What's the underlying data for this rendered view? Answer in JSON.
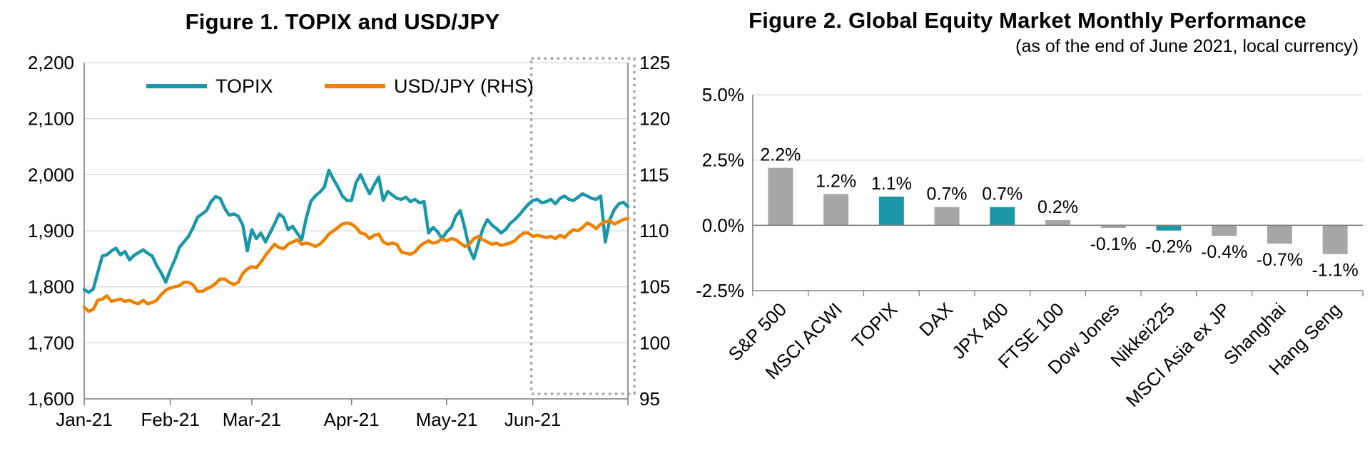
{
  "style": {
    "background": "#ffffff",
    "grid_color": "#d9d9d9",
    "axis_color": "#7f7f7f",
    "text_color": "#000000",
    "teal": "#1b97a7",
    "orange": "#ee8100",
    "gray_bar": "#a6a6a6",
    "highlight_box_gray": "#a6a6a6"
  },
  "chart_data": [
    {
      "type": "line",
      "title": "Figure 1. TOPIX and USD/JPY",
      "x_tick_labels": [
        "Jan-21",
        "Feb-21",
        "Mar-21",
        "Apr-21",
        "May-21",
        "Jun-21"
      ],
      "x_tick_indices": [
        0,
        19,
        37,
        59,
        80,
        99
      ],
      "left_axis": {
        "min": 1600,
        "max": 2200,
        "step": 100,
        "labels": [
          "1,600",
          "1,700",
          "1,800",
          "1,900",
          "2,000",
          "2,100",
          "2,200"
        ]
      },
      "right_axis": {
        "min": 95,
        "max": 125,
        "step": 5,
        "labels": [
          "95",
          "100",
          "105",
          "110",
          "115",
          "120",
          "125"
        ]
      },
      "grid": true,
      "legend_position": "top-inside",
      "highlight_box": {
        "start_index": 99,
        "color": "#a6a6a6"
      },
      "series": [
        {
          "name": "TOPIX",
          "axis": "left",
          "color": "#1b97a7",
          "values": [
            1795,
            1790,
            1796,
            1826,
            1855,
            1857,
            1864,
            1869,
            1857,
            1863,
            1848,
            1856,
            1861,
            1866,
            1860,
            1855,
            1838,
            1825,
            1808,
            1830,
            1848,
            1870,
            1880,
            1890,
            1905,
            1924,
            1930,
            1936,
            1952,
            1961,
            1958,
            1940,
            1928,
            1930,
            1926,
            1910,
            1864,
            1902,
            1886,
            1896,
            1880,
            1896,
            1912,
            1930,
            1924,
            1902,
            1908,
            1896,
            1884,
            1922,
            1952,
            1962,
            1969,
            1978,
            2008,
            1992,
            1978,
            1962,
            1954,
            1954,
            1986,
            2000,
            1982,
            1966,
            1982,
            1996,
            1954,
            1970,
            1964,
            1958,
            1956,
            1960,
            1952,
            1956,
            1950,
            1952,
            1896,
            1906,
            1898,
            1886,
            1898,
            1906,
            1926,
            1936,
            1905,
            1868,
            1850,
            1878,
            1904,
            1920,
            1910,
            1904,
            1896,
            1902,
            1913,
            1920,
            1928,
            1938,
            1947,
            1954,
            1956,
            1950,
            1952,
            1956,
            1948,
            1958,
            1962,
            1956,
            1954,
            1960,
            1966,
            1962,
            1958,
            1956,
            1962,
            1880,
            1920,
            1938,
            1948,
            1951,
            1943
          ]
        },
        {
          "name": "USD/JPY (RHS)",
          "axis": "right",
          "color": "#ee8100",
          "values": [
            103.2,
            102.8,
            103.0,
            103.8,
            103.9,
            104.2,
            103.7,
            103.8,
            103.9,
            103.7,
            103.8,
            103.6,
            103.5,
            103.8,
            103.5,
            103.6,
            103.8,
            104.3,
            104.7,
            104.9,
            105.0,
            105.1,
            105.4,
            105.4,
            105.2,
            104.6,
            104.6,
            104.8,
            105.0,
            105.3,
            105.7,
            105.7,
            105.4,
            105.2,
            105.4,
            106.2,
            106.6,
            106.8,
            106.7,
            107.2,
            107.8,
            108.3,
            108.8,
            108.5,
            108.4,
            108.8,
            109.0,
            109.2,
            108.8,
            108.9,
            108.8,
            108.6,
            108.8,
            109.2,
            109.7,
            110.0,
            110.3,
            110.6,
            110.7,
            110.6,
            110.3,
            109.8,
            109.7,
            109.3,
            109.6,
            109.7,
            109.0,
            108.8,
            108.9,
            108.8,
            108.1,
            108.0,
            107.9,
            108.1,
            108.6,
            108.9,
            109.1,
            108.9,
            109.0,
            109.3,
            109.1,
            109.3,
            109.2,
            108.9,
            108.6,
            108.8,
            109.3,
            109.5,
            109.2,
            109.0,
            108.8,
            108.9,
            108.7,
            108.8,
            108.9,
            109.1,
            109.5,
            109.8,
            109.8,
            109.5,
            109.6,
            109.5,
            109.4,
            109.5,
            109.3,
            109.6,
            109.4,
            109.8,
            110.1,
            110.0,
            110.3,
            110.7,
            110.5,
            110.2,
            110.6,
            110.8,
            110.9,
            110.6,
            110.8,
            111.0,
            111.1
          ]
        }
      ]
    },
    {
      "type": "bar",
      "title": "Figure 2. Global Equity Market Monthly Performance",
      "subtitle": "(as of the end of June 2021, local currency)",
      "categories": [
        "S&P 500",
        "MSCI ACWI",
        "TOPIX",
        "DAX",
        "JPX 400",
        "FTSE 100",
        "Dow Jones",
        "Nikkei225",
        "MSCI Asia ex JP",
        "Shanghai",
        "Hang Seng"
      ],
      "values": [
        2.2,
        1.2,
        1.1,
        0.7,
        0.7,
        0.2,
        -0.1,
        -0.2,
        -0.4,
        -0.7,
        -1.1
      ],
      "value_labels": [
        "2.2%",
        "1.2%",
        "1.1%",
        "0.7%",
        "0.7%",
        "0.2%",
        "-0.1%",
        "-0.2%",
        "-0.4%",
        "-0.7%",
        "-1.1%"
      ],
      "highlighted": [
        false,
        false,
        true,
        false,
        true,
        false,
        false,
        true,
        false,
        false,
        false
      ],
      "bar_color": "#a6a6a6",
      "highlight_color": "#1b97a7",
      "ylim": [
        -2.5,
        5.0
      ],
      "ytick_values": [
        5.0,
        2.5,
        0.0,
        -2.5
      ],
      "ytick_labels": [
        "5.0%",
        "2.5%",
        "0.0%",
        "-2.5%"
      ],
      "grid": true,
      "legend_position": "none"
    }
  ]
}
